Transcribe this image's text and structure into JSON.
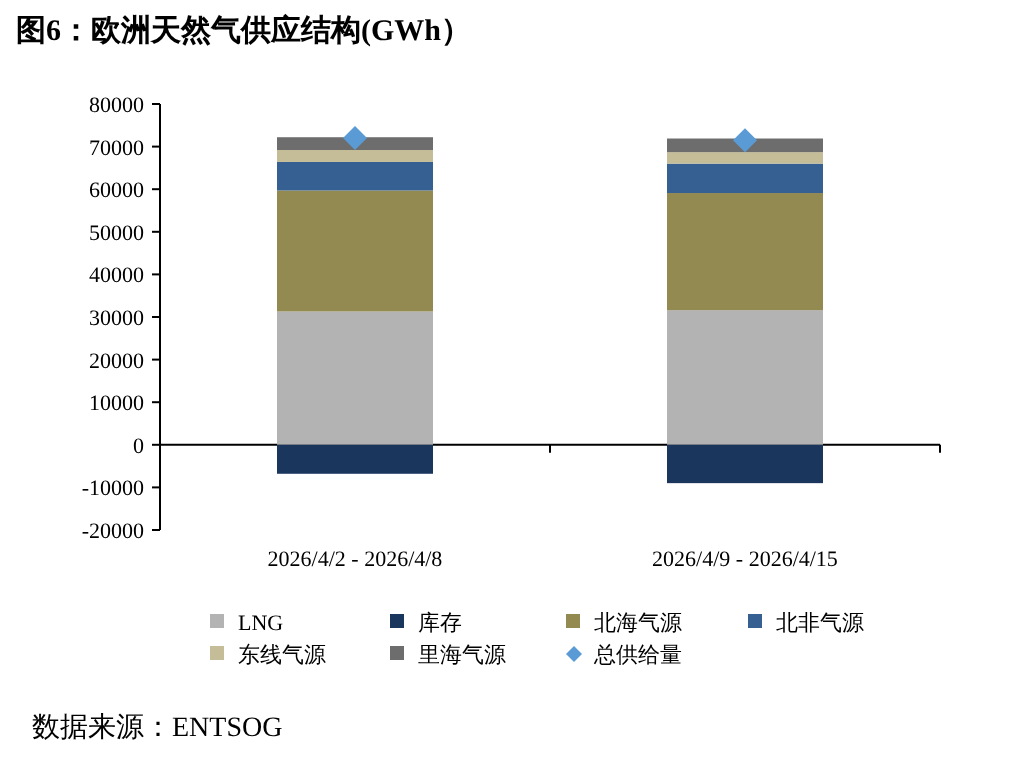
{
  "chart_data": {
    "type": "bar",
    "title": "图6：欧洲天然气供应结构(GWh）",
    "stacked": true,
    "categories": [
      "2026/4/2 - 2026/4/8",
      "2026/4/9 - 2026/4/15"
    ],
    "series": [
      {
        "name": "LNG",
        "color": "#b3b3b3",
        "values": [
          31300,
          31600
        ]
      },
      {
        "name": "库存",
        "color": "#1a365d",
        "values": [
          -6800,
          -9000
        ]
      },
      {
        "name": "北海气源",
        "color": "#938a52",
        "values": [
          28400,
          27500
        ]
      },
      {
        "name": "北非气源",
        "color": "#366092",
        "values": [
          6700,
          6900
        ]
      },
      {
        "name": "东线气源",
        "color": "#c4bd97",
        "values": [
          2800,
          2700
        ]
      },
      {
        "name": "里海气源",
        "color": "#6d6d6d",
        "values": [
          3000,
          3200
        ]
      },
      {
        "name": "总供给量",
        "color": "#5b9bd5",
        "type": "scatter",
        "marker": "diamond",
        "x": [
          "2026/4/2 - 2026/4/8",
          "2026/4/9 - 2026/4/15"
        ],
        "values": [
          72000,
          71500
        ]
      }
    ],
    "ylim": [
      -20000,
      80000
    ],
    "yticks": [
      -20000,
      -10000,
      0,
      10000,
      20000,
      30000,
      40000,
      50000,
      60000,
      70000,
      80000
    ],
    "legend": "bottom",
    "annotations": [
      "数据来源：ENTSOG"
    ]
  }
}
